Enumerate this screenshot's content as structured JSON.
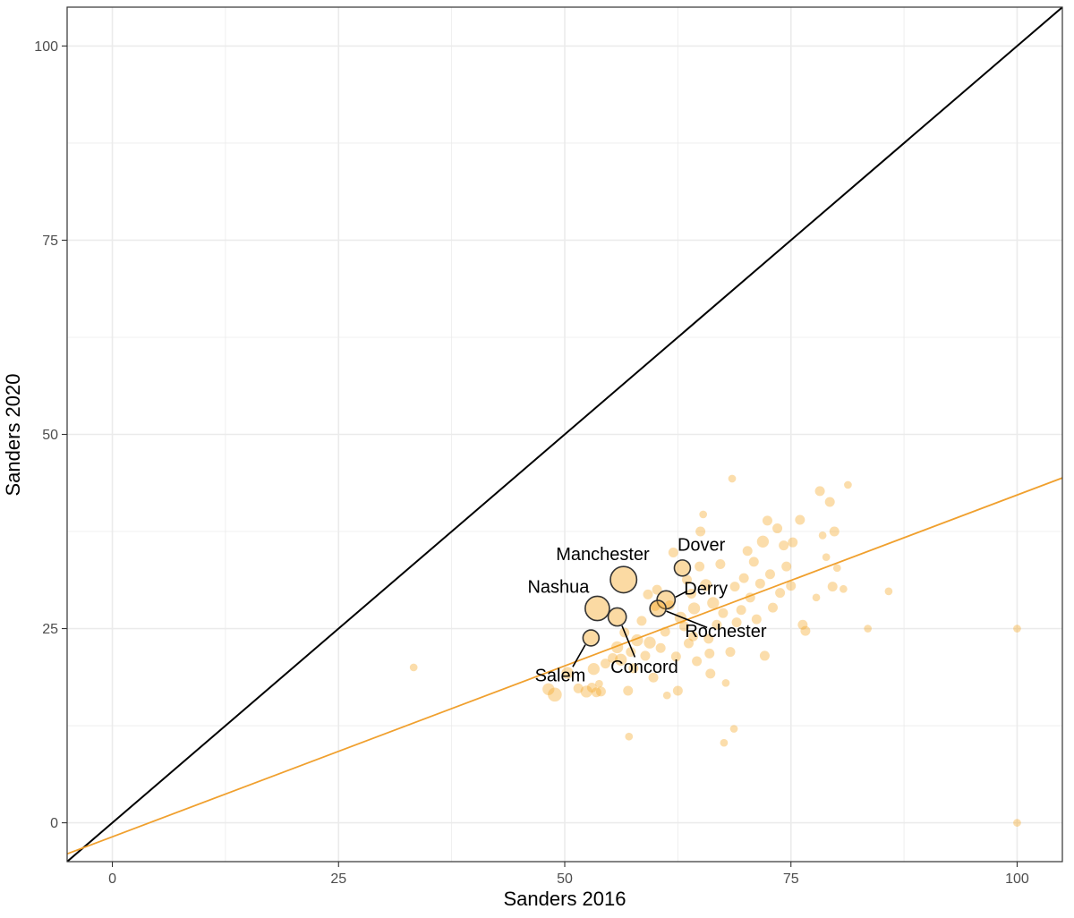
{
  "chart_data": {
    "type": "scatter",
    "xlabel": "Sanders 2016",
    "ylabel": "Sanders 2020",
    "xlim": [
      -5,
      105
    ],
    "ylim": [
      -5,
      105
    ],
    "x_ticks": [
      "0",
      "25",
      "50",
      "75",
      "100"
    ],
    "y_ticks": [
      "0",
      "25",
      "50",
      "75",
      "100"
    ],
    "grid": true,
    "colors": {
      "points": "#f5a623",
      "fit_line": "#f0a02e",
      "identity_line": "#000000",
      "highlight_outline": "#333333",
      "grid": "#ebebeb"
    },
    "reference_lines": [
      {
        "kind": "identity",
        "slope": 1,
        "intercept": 0
      },
      {
        "kind": "fit",
        "slope": 0.44,
        "intercept": -1.8
      }
    ],
    "points": [
      {
        "x": 33.3,
        "y": 20.0,
        "s": 1
      },
      {
        "x": 100,
        "y": 25.0,
        "s": 1
      },
      {
        "x": 100,
        "y": 0.0,
        "s": 1
      },
      {
        "x": 48.2,
        "y": 17.2,
        "s": 3
      },
      {
        "x": 48.9,
        "y": 16.5,
        "s": 4
      },
      {
        "x": 50.3,
        "y": 19.3,
        "s": 3
      },
      {
        "x": 51.5,
        "y": 17.3,
        "s": 2
      },
      {
        "x": 52.4,
        "y": 16.9,
        "s": 3
      },
      {
        "x": 53.0,
        "y": 17.4,
        "s": 2
      },
      {
        "x": 53.5,
        "y": 16.8,
        "s": 2
      },
      {
        "x": 53.8,
        "y": 17.9,
        "s": 1
      },
      {
        "x": 53.2,
        "y": 19.8,
        "s": 3
      },
      {
        "x": 54.0,
        "y": 16.9,
        "s": 2
      },
      {
        "x": 54.5,
        "y": 20.5,
        "s": 2
      },
      {
        "x": 55.3,
        "y": 21.2,
        "s": 2
      },
      {
        "x": 55.8,
        "y": 22.6,
        "s": 3
      },
      {
        "x": 56.2,
        "y": 21.0,
        "s": 3
      },
      {
        "x": 56.6,
        "y": 24.5,
        "s": 2
      },
      {
        "x": 57.0,
        "y": 17.0,
        "s": 2
      },
      {
        "x": 57.3,
        "y": 22.0,
        "s": 2
      },
      {
        "x": 57.6,
        "y": 19.9,
        "s": 2
      },
      {
        "x": 57.1,
        "y": 11.1,
        "s": 1
      },
      {
        "x": 58.0,
        "y": 23.5,
        "s": 3
      },
      {
        "x": 58.5,
        "y": 26.0,
        "s": 2
      },
      {
        "x": 58.9,
        "y": 21.5,
        "s": 2
      },
      {
        "x": 59.4,
        "y": 23.2,
        "s": 3
      },
      {
        "x": 59.8,
        "y": 18.7,
        "s": 2
      },
      {
        "x": 60.2,
        "y": 30.0,
        "s": 2
      },
      {
        "x": 60.6,
        "y": 22.5,
        "s": 2
      },
      {
        "x": 61.1,
        "y": 24.6,
        "s": 2
      },
      {
        "x": 61.6,
        "y": 28.0,
        "s": 2
      },
      {
        "x": 61.3,
        "y": 16.4,
        "s": 1
      },
      {
        "x": 62.0,
        "y": 34.8,
        "s": 2
      },
      {
        "x": 62.3,
        "y": 21.4,
        "s": 2
      },
      {
        "x": 62.8,
        "y": 26.4,
        "s": 3
      },
      {
        "x": 62.5,
        "y": 17.0,
        "s": 2
      },
      {
        "x": 63.2,
        "y": 25.3,
        "s": 2
      },
      {
        "x": 63.7,
        "y": 23.1,
        "s": 2
      },
      {
        "x": 64.0,
        "y": 29.5,
        "s": 2
      },
      {
        "x": 64.3,
        "y": 27.6,
        "s": 3
      },
      {
        "x": 64.6,
        "y": 20.8,
        "s": 2
      },
      {
        "x": 64.9,
        "y": 33.0,
        "s": 2
      },
      {
        "x": 65.0,
        "y": 37.5,
        "s": 2
      },
      {
        "x": 65.3,
        "y": 39.7,
        "s": 1
      },
      {
        "x": 65.6,
        "y": 30.6,
        "s": 3
      },
      {
        "x": 65.9,
        "y": 23.7,
        "s": 2
      },
      {
        "x": 66.1,
        "y": 19.2,
        "s": 2
      },
      {
        "x": 66.4,
        "y": 28.3,
        "s": 3
      },
      {
        "x": 66.8,
        "y": 25.5,
        "s": 2
      },
      {
        "x": 67.2,
        "y": 33.3,
        "s": 2
      },
      {
        "x": 67.5,
        "y": 27.0,
        "s": 2
      },
      {
        "x": 67.8,
        "y": 18.0,
        "s": 1
      },
      {
        "x": 67.6,
        "y": 10.3,
        "s": 1
      },
      {
        "x": 68.3,
        "y": 22.0,
        "s": 2
      },
      {
        "x": 68.8,
        "y": 30.4,
        "s": 2
      },
      {
        "x": 68.5,
        "y": 44.3,
        "s": 1
      },
      {
        "x": 68.7,
        "y": 12.1,
        "s": 1
      },
      {
        "x": 69.0,
        "y": 25.8,
        "s": 2
      },
      {
        "x": 69.5,
        "y": 27.4,
        "s": 2
      },
      {
        "x": 69.8,
        "y": 31.5,
        "s": 2
      },
      {
        "x": 70.2,
        "y": 35.0,
        "s": 2
      },
      {
        "x": 70.5,
        "y": 29.0,
        "s": 2
      },
      {
        "x": 70.9,
        "y": 33.6,
        "s": 2
      },
      {
        "x": 71.2,
        "y": 26.2,
        "s": 2
      },
      {
        "x": 71.6,
        "y": 30.8,
        "s": 2
      },
      {
        "x": 71.9,
        "y": 36.2,
        "s": 3
      },
      {
        "x": 72.1,
        "y": 21.5,
        "s": 2
      },
      {
        "x": 72.4,
        "y": 38.9,
        "s": 2
      },
      {
        "x": 72.7,
        "y": 32.0,
        "s": 2
      },
      {
        "x": 73.0,
        "y": 27.7,
        "s": 2
      },
      {
        "x": 73.5,
        "y": 37.9,
        "s": 2
      },
      {
        "x": 73.8,
        "y": 29.6,
        "s": 2
      },
      {
        "x": 74.2,
        "y": 35.7,
        "s": 2
      },
      {
        "x": 74.5,
        "y": 33.0,
        "s": 2
      },
      {
        "x": 75.0,
        "y": 30.5,
        "s": 2
      },
      {
        "x": 75.2,
        "y": 36.1,
        "s": 2
      },
      {
        "x": 76.0,
        "y": 39.0,
        "s": 2
      },
      {
        "x": 76.3,
        "y": 25.5,
        "s": 2
      },
      {
        "x": 76.6,
        "y": 24.7,
        "s": 2
      },
      {
        "x": 77.8,
        "y": 29.0,
        "s": 1
      },
      {
        "x": 78.2,
        "y": 42.7,
        "s": 2
      },
      {
        "x": 78.5,
        "y": 37.0,
        "s": 1
      },
      {
        "x": 78.9,
        "y": 34.2,
        "s": 1
      },
      {
        "x": 79.3,
        "y": 41.3,
        "s": 2
      },
      {
        "x": 79.6,
        "y": 30.4,
        "s": 2
      },
      {
        "x": 79.8,
        "y": 37.5,
        "s": 2
      },
      {
        "x": 80.1,
        "y": 32.8,
        "s": 1
      },
      {
        "x": 80.8,
        "y": 30.1,
        "s": 1
      },
      {
        "x": 81.3,
        "y": 43.5,
        "s": 1
      },
      {
        "x": 83.5,
        "y": 25.0,
        "s": 1
      },
      {
        "x": 85.8,
        "y": 29.8,
        "s": 1
      },
      {
        "x": 60.0,
        "y": 27.9,
        "s": 2
      },
      {
        "x": 59.2,
        "y": 29.4,
        "s": 2
      },
      {
        "x": 63.5,
        "y": 31.3,
        "s": 2
      },
      {
        "x": 66.0,
        "y": 21.8,
        "s": 2
      },
      {
        "x": 64.2,
        "y": 24.0,
        "s": 2
      }
    ],
    "highlighted": [
      {
        "name": "Manchester",
        "x": 56.5,
        "y": 31.3,
        "s": 10
      },
      {
        "name": "Nashua",
        "x": 53.6,
        "y": 27.6,
        "s": 9
      },
      {
        "name": "Dover",
        "x": 63.0,
        "y": 32.8,
        "s": 5
      },
      {
        "name": "Derry",
        "x": 61.2,
        "y": 28.7,
        "s": 6
      },
      {
        "name": "Rochester",
        "x": 60.3,
        "y": 27.6,
        "s": 5
      },
      {
        "name": "Concord",
        "x": 55.8,
        "y": 26.5,
        "s": 6
      },
      {
        "name": "Salem",
        "x": 52.9,
        "y": 23.8,
        "s": 5
      }
    ],
    "annotations": [
      {
        "text": "Manchester",
        "x": 54.2,
        "y": 33.8,
        "anchor": "middle",
        "leader": false
      },
      {
        "text": "Nashua",
        "x": 49.3,
        "y": 29.6,
        "anchor": "middle",
        "leader": false
      },
      {
        "text": "Dover",
        "x": 65.1,
        "y": 35.0,
        "anchor": "middle",
        "leader": false
      },
      {
        "text": "Derry",
        "x": 65.6,
        "y": 29.4,
        "anchor": "middle",
        "leader": true
      },
      {
        "text": "Rochester",
        "x": 67.8,
        "y": 23.9,
        "anchor": "middle",
        "leader": true
      },
      {
        "text": "Concord",
        "x": 58.8,
        "y": 19.3,
        "anchor": "middle",
        "leader": true
      },
      {
        "text": "Salem",
        "x": 49.5,
        "y": 18.2,
        "anchor": "middle",
        "leader": true
      }
    ]
  }
}
